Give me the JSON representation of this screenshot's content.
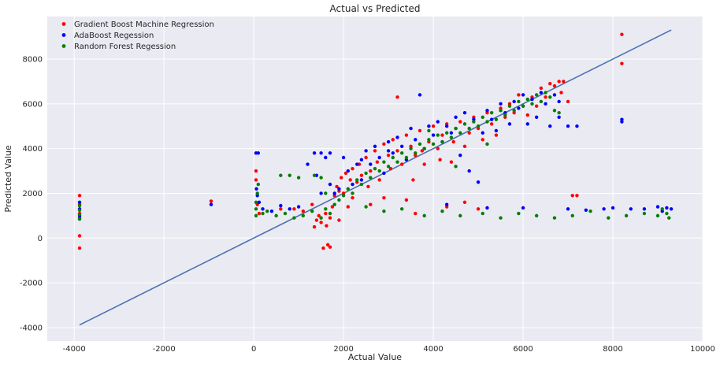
{
  "chart_data": {
    "type": "scatter",
    "title": "Actual vs Predicted",
    "xlabel": "Actual Value",
    "ylabel": "Predicted Value",
    "xlim": [
      -4600,
      10000
    ],
    "ylim": [
      -4600,
      9900
    ],
    "x_ticks": [
      -4000,
      -2000,
      0,
      2000,
      4000,
      6000,
      8000,
      10000
    ],
    "y_ticks": [
      -4000,
      -2000,
      0,
      2000,
      4000,
      6000,
      8000
    ],
    "grid": true,
    "legend_position": "top-left",
    "background_color": "#eaeaf2",
    "series": [
      {
        "name": "Gradient Boost Machine Regression",
        "color": "#ff0000",
        "points": [
          [
            -3880,
            1900
          ],
          [
            -3880,
            1500
          ],
          [
            -3880,
            1100
          ],
          [
            -3880,
            900
          ],
          [
            -3880,
            100
          ],
          [
            -3880,
            -450
          ],
          [
            -950,
            1650
          ],
          [
            50,
            3000
          ],
          [
            50,
            2600
          ],
          [
            80,
            1500
          ],
          [
            120,
            1100
          ],
          [
            600,
            1300
          ],
          [
            900,
            1300
          ],
          [
            1100,
            1200
          ],
          [
            1300,
            1500
          ],
          [
            1350,
            500
          ],
          [
            1400,
            800
          ],
          [
            1450,
            1000
          ],
          [
            1500,
            700
          ],
          [
            1550,
            -450
          ],
          [
            1600,
            1100
          ],
          [
            1620,
            550
          ],
          [
            1650,
            -300
          ],
          [
            1700,
            900
          ],
          [
            1700,
            -400
          ],
          [
            1750,
            1400
          ],
          [
            1800,
            1900
          ],
          [
            1850,
            2300
          ],
          [
            1900,
            2100
          ],
          [
            1950,
            2700
          ],
          [
            2000,
            2000
          ],
          [
            2050,
            2900
          ],
          [
            2100,
            1400
          ],
          [
            2150,
            2600
          ],
          [
            2200,
            3100
          ],
          [
            2300,
            2500
          ],
          [
            2350,
            3300
          ],
          [
            2400,
            2800
          ],
          [
            2500,
            3600
          ],
          [
            2550,
            2300
          ],
          [
            2600,
            3000
          ],
          [
            2700,
            3900
          ],
          [
            2750,
            3400
          ],
          [
            2800,
            2600
          ],
          [
            2900,
            4200
          ],
          [
            3000,
            3700
          ],
          [
            3050,
            3100
          ],
          [
            3100,
            4400
          ],
          [
            3200,
            3900
          ],
          [
            3300,
            3300
          ],
          [
            3400,
            4600
          ],
          [
            3500,
            4100
          ],
          [
            3550,
            2600
          ],
          [
            3600,
            3700
          ],
          [
            3700,
            4800
          ],
          [
            3750,
            3900
          ],
          [
            3800,
            3300
          ],
          [
            3900,
            4300
          ],
          [
            4000,
            5000
          ],
          [
            4100,
            4000
          ],
          [
            4150,
            3500
          ],
          [
            4200,
            4600
          ],
          [
            4300,
            5100
          ],
          [
            4400,
            3400
          ],
          [
            4450,
            4300
          ],
          [
            4500,
            4900
          ],
          [
            4600,
            5200
          ],
          [
            4700,
            4100
          ],
          [
            4800,
            4700
          ],
          [
            4900,
            5400
          ],
          [
            5000,
            4900
          ],
          [
            5100,
            4400
          ],
          [
            5200,
            5600
          ],
          [
            5300,
            5100
          ],
          [
            5400,
            4600
          ],
          [
            5500,
            5800
          ],
          [
            5600,
            5400
          ],
          [
            5700,
            6000
          ],
          [
            5800,
            5600
          ],
          [
            5900,
            6400
          ],
          [
            6000,
            5900
          ],
          [
            6100,
            5500
          ],
          [
            6200,
            6300
          ],
          [
            6300,
            5900
          ],
          [
            6400,
            6700
          ],
          [
            6500,
            6300
          ],
          [
            6600,
            6900
          ],
          [
            6700,
            6800
          ],
          [
            6800,
            7000
          ],
          [
            6850,
            6500
          ],
          [
            6900,
            7000
          ],
          [
            7000,
            6100
          ],
          [
            7100,
            1900
          ],
          [
            7200,
            1900
          ],
          [
            8200,
            9100
          ],
          [
            8200,
            7800
          ],
          [
            4300,
            1400
          ],
          [
            3600,
            1100
          ],
          [
            2600,
            1500
          ],
          [
            5000,
            1300
          ],
          [
            2900,
            1800
          ],
          [
            3400,
            1700
          ],
          [
            4700,
            1600
          ],
          [
            2200,
            1800
          ],
          [
            1900,
            800
          ],
          [
            3200,
            6300
          ]
        ]
      },
      {
        "name": "AdaBoost Regession",
        "color": "#0000ff",
        "points": [
          [
            -3880,
            1600
          ],
          [
            -3880,
            1300
          ],
          [
            -3880,
            1000
          ],
          [
            -950,
            1500
          ],
          [
            50,
            3800
          ],
          [
            100,
            3800
          ],
          [
            60,
            2200
          ],
          [
            80,
            1900
          ],
          [
            120,
            1600
          ],
          [
            200,
            1300
          ],
          [
            400,
            1200
          ],
          [
            600,
            1450
          ],
          [
            800,
            1300
          ],
          [
            1000,
            1400
          ],
          [
            1350,
            3800
          ],
          [
            1500,
            3800
          ],
          [
            1700,
            3800
          ],
          [
            1200,
            3300
          ],
          [
            1400,
            2800
          ],
          [
            1500,
            2000
          ],
          [
            1700,
            2400
          ],
          [
            1800,
            2000
          ],
          [
            1900,
            2200
          ],
          [
            2000,
            3600
          ],
          [
            2100,
            3000
          ],
          [
            2200,
            2400
          ],
          [
            2300,
            3300
          ],
          [
            2400,
            2600
          ],
          [
            2500,
            3900
          ],
          [
            2600,
            3300
          ],
          [
            2700,
            4100
          ],
          [
            2800,
            3600
          ],
          [
            2900,
            2900
          ],
          [
            3000,
            4300
          ],
          [
            3100,
            3800
          ],
          [
            3200,
            4500
          ],
          [
            3300,
            4100
          ],
          [
            3400,
            3500
          ],
          [
            3500,
            4900
          ],
          [
            3600,
            4400
          ],
          [
            3700,
            6400
          ],
          [
            3800,
            4000
          ],
          [
            3900,
            5000
          ],
          [
            4000,
            4600
          ],
          [
            4100,
            5200
          ],
          [
            4200,
            4300
          ],
          [
            4300,
            5000
          ],
          [
            4400,
            4700
          ],
          [
            4500,
            5400
          ],
          [
            4600,
            3700
          ],
          [
            4700,
            5600
          ],
          [
            4800,
            3000
          ],
          [
            4900,
            5300
          ],
          [
            5000,
            2500
          ],
          [
            5100,
            4700
          ],
          [
            5200,
            5700
          ],
          [
            5300,
            5300
          ],
          [
            5400,
            4800
          ],
          [
            5500,
            6000
          ],
          [
            5600,
            5600
          ],
          [
            5700,
            5100
          ],
          [
            5800,
            6100
          ],
          [
            5900,
            5800
          ],
          [
            6000,
            6400
          ],
          [
            6100,
            5100
          ],
          [
            6200,
            6200
          ],
          [
            6300,
            5400
          ],
          [
            6400,
            6500
          ],
          [
            6500,
            6000
          ],
          [
            6600,
            5000
          ],
          [
            6700,
            6400
          ],
          [
            6800,
            5400
          ],
          [
            7000,
            5000
          ],
          [
            7200,
            5000
          ],
          [
            8200,
            5300
          ],
          [
            8200,
            5200
          ],
          [
            4300,
            1500
          ],
          [
            5200,
            1350
          ],
          [
            6000,
            1350
          ],
          [
            7000,
            1300
          ],
          [
            7400,
            1250
          ],
          [
            7800,
            1300
          ],
          [
            8000,
            1350
          ],
          [
            8400,
            1300
          ],
          [
            8700,
            1300
          ],
          [
            9000,
            1400
          ],
          [
            9100,
            1200
          ],
          [
            9200,
            1350
          ],
          [
            9300,
            1300
          ],
          [
            2400,
            3500
          ],
          [
            1600,
            3600
          ],
          [
            3000,
            3900
          ],
          [
            6800,
            6100
          ]
        ]
      },
      {
        "name": "Random Forest Regession",
        "color": "#008000",
        "points": [
          [
            -3880,
            1450
          ],
          [
            -3880,
            1250
          ],
          [
            -3880,
            1050
          ],
          [
            -3880,
            850
          ],
          [
            50,
            1600
          ],
          [
            50,
            1300
          ],
          [
            50,
            1000
          ],
          [
            80,
            2000
          ],
          [
            100,
            2400
          ],
          [
            200,
            1100
          ],
          [
            300,
            1200
          ],
          [
            500,
            1000
          ],
          [
            700,
            1100
          ],
          [
            900,
            900
          ],
          [
            1100,
            1000
          ],
          [
            1300,
            1200
          ],
          [
            1500,
            900
          ],
          [
            1600,
            1300
          ],
          [
            1700,
            1100
          ],
          [
            1800,
            1500
          ],
          [
            1900,
            1700
          ],
          [
            2000,
            1900
          ],
          [
            2100,
            2200
          ],
          [
            2200,
            2000
          ],
          [
            2300,
            2600
          ],
          [
            2400,
            2400
          ],
          [
            2500,
            2900
          ],
          [
            2600,
            2700
          ],
          [
            2700,
            3100
          ],
          [
            2800,
            3000
          ],
          [
            2900,
            3400
          ],
          [
            3000,
            3200
          ],
          [
            3100,
            3600
          ],
          [
            3200,
            3400
          ],
          [
            3300,
            3800
          ],
          [
            3400,
            3600
          ],
          [
            3500,
            4000
          ],
          [
            3600,
            3800
          ],
          [
            3700,
            4200
          ],
          [
            3800,
            4000
          ],
          [
            3900,
            4400
          ],
          [
            4000,
            4200
          ],
          [
            4100,
            4600
          ],
          [
            4200,
            4300
          ],
          [
            4300,
            4700
          ],
          [
            4400,
            4500
          ],
          [
            4500,
            4900
          ],
          [
            4600,
            4700
          ],
          [
            4700,
            5100
          ],
          [
            4800,
            4900
          ],
          [
            4900,
            5200
          ],
          [
            5000,
            5000
          ],
          [
            5100,
            5400
          ],
          [
            5200,
            5200
          ],
          [
            5300,
            5600
          ],
          [
            5400,
            5300
          ],
          [
            5500,
            5700
          ],
          [
            5600,
            5500
          ],
          [
            5700,
            5900
          ],
          [
            5800,
            5700
          ],
          [
            5900,
            6100
          ],
          [
            6000,
            5900
          ],
          [
            6100,
            6200
          ],
          [
            6200,
            6000
          ],
          [
            6300,
            6400
          ],
          [
            6400,
            6100
          ],
          [
            6500,
            6500
          ],
          [
            6600,
            6300
          ],
          [
            6700,
            5700
          ],
          [
            6800,
            5600
          ],
          [
            1350,
            2800
          ],
          [
            1500,
            2700
          ],
          [
            1600,
            2000
          ],
          [
            1000,
            2700
          ],
          [
            800,
            2800
          ],
          [
            600,
            2800
          ],
          [
            2500,
            1400
          ],
          [
            2900,
            1200
          ],
          [
            3300,
            1300
          ],
          [
            3800,
            1000
          ],
          [
            4200,
            1200
          ],
          [
            4600,
            1000
          ],
          [
            5100,
            1100
          ],
          [
            5500,
            900
          ],
          [
            5900,
            1100
          ],
          [
            6300,
            1000
          ],
          [
            6700,
            900
          ],
          [
            7100,
            1000
          ],
          [
            7500,
            1200
          ],
          [
            7900,
            900
          ],
          [
            8300,
            1000
          ],
          [
            8700,
            1100
          ],
          [
            9000,
            1000
          ],
          [
            9100,
            1300
          ],
          [
            9200,
            1100
          ],
          [
            9250,
            900
          ],
          [
            4500,
            3200
          ],
          [
            3900,
            4800
          ],
          [
            5200,
            4200
          ]
        ]
      }
    ],
    "reference_line": {
      "from": [
        -3880,
        -3880
      ],
      "to": [
        9300,
        9300
      ],
      "color": "#4c72b0"
    }
  }
}
